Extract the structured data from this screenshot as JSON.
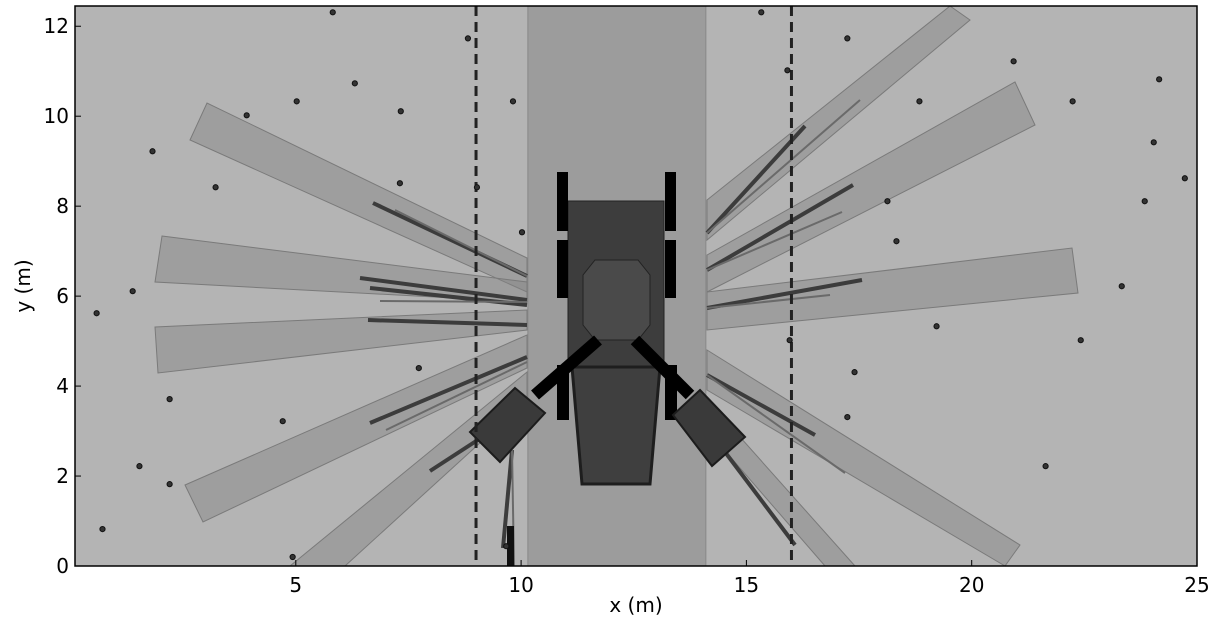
{
  "chart_data": {
    "type": "scatter",
    "xlabel": "x (m)",
    "ylabel": "y (m)",
    "xlim": [
      0.1,
      25
    ],
    "ylim": [
      0,
      12.45
    ],
    "xticks": [
      5,
      10,
      15,
      20,
      25
    ],
    "yticks": [
      0,
      2,
      4,
      6,
      8,
      10,
      12
    ],
    "x": [
      5.82,
      8.82,
      15.33,
      17.24,
      20.93,
      24.16,
      22.24,
      18.84,
      15.91,
      6.31,
      5.02,
      3.91,
      7.33,
      9.82,
      1.82,
      24.04,
      24.73,
      23.84,
      18.13,
      7.31,
      3.22,
      9.02,
      10.02,
      18.33,
      1.38,
      23.33,
      0.58,
      19.22,
      22.42,
      15.96,
      7.73,
      17.4,
      2.2,
      4.71,
      17.24,
      1.53,
      21.64,
      2.2,
      0.71,
      4.93,
      9.67
    ],
    "values": [
      12.31,
      11.73,
      12.31,
      11.73,
      11.22,
      10.82,
      10.33,
      10.33,
      11.02,
      10.73,
      10.33,
      10.02,
      10.11,
      10.33,
      9.22,
      9.42,
      8.62,
      8.11,
      8.11,
      8.51,
      8.42,
      8.42,
      7.42,
      7.22,
      6.11,
      6.22,
      5.62,
      5.33,
      5.02,
      5.02,
      4.4,
      4.31,
      3.71,
      3.22,
      3.31,
      2.22,
      2.22,
      1.82,
      0.82,
      0.2,
      0.44
    ],
    "color": "#333333",
    "vlines": [
      9,
      16
    ],
    "band": [
      10.15,
      14.1
    ]
  }
}
